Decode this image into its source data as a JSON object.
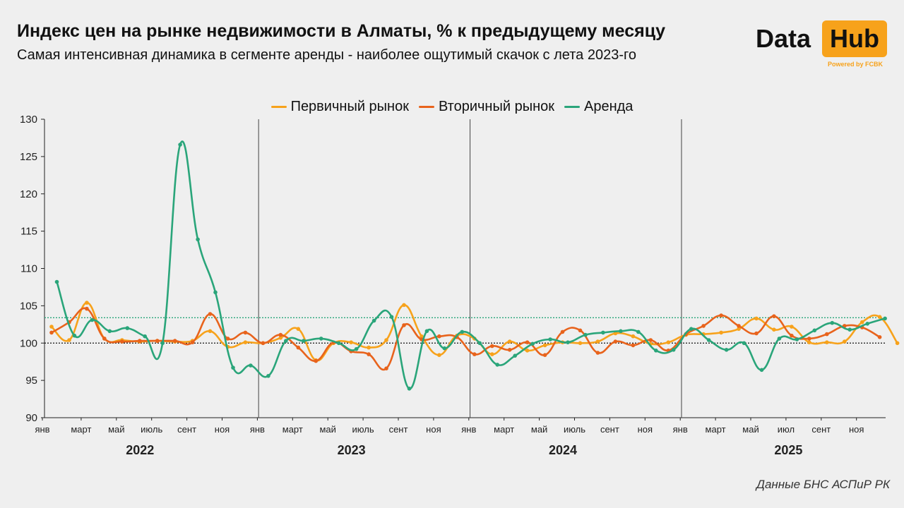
{
  "header": {
    "title": "Индекс цен на рынке недвижимости в Алматы, % к предыдущему месяцу",
    "subtitle": "Самая интенсивная динамика в сегменте аренды - наиболее ощутимый скачок с лета 2023-го"
  },
  "logo": {
    "word1": "Data",
    "word2": "Hub",
    "tagline": "Powered by FCBK",
    "accent": "#f7a21b"
  },
  "source": "Данные БНС АСПиР РК",
  "chart_data": {
    "type": "line",
    "y_ticks": [
      "130",
      "125",
      "120",
      "115",
      "110",
      "105",
      "100",
      "95",
      "90"
    ],
    "ylim": [
      90,
      130
    ],
    "month_labels": [
      {
        "index": 0,
        "label": "янв"
      },
      {
        "index": 2,
        "label": "март"
      },
      {
        "index": 4,
        "label": "май"
      },
      {
        "index": 6,
        "label": "июль"
      },
      {
        "index": 8,
        "label": "сент"
      },
      {
        "index": 10,
        "label": "ноя"
      },
      {
        "index": 12,
        "label": "янв"
      },
      {
        "index": 14,
        "label": "март"
      },
      {
        "index": 16,
        "label": "май"
      },
      {
        "index": 18,
        "label": "июль"
      },
      {
        "index": 20,
        "label": "сент"
      },
      {
        "index": 22,
        "label": "ноя"
      },
      {
        "index": 24,
        "label": "янв"
      },
      {
        "index": 26,
        "label": "март"
      },
      {
        "index": 28,
        "label": "май"
      },
      {
        "index": 30,
        "label": "июль"
      },
      {
        "index": 32,
        "label": "сент"
      },
      {
        "index": 34,
        "label": "ноя"
      },
      {
        "index": 36,
        "label": "янв"
      },
      {
        "index": 38,
        "label": "март"
      },
      {
        "index": 40,
        "label": "май"
      },
      {
        "index": 42,
        "label": "июл"
      },
      {
        "index": 44,
        "label": "сент"
      },
      {
        "index": 46,
        "label": "ноя"
      }
    ],
    "years": [
      {
        "label": "2022",
        "center_index": 5.5
      },
      {
        "label": "2023",
        "center_index": 17.5
      },
      {
        "label": "2024",
        "center_index": 29.5
      },
      {
        "label": "2025",
        "center_index": 42.3
      }
    ],
    "year_dividers": [
      12,
      24,
      36
    ],
    "reference_lines": [
      {
        "value": 100,
        "style": "dotted",
        "color": "#111111"
      },
      {
        "value": 103.4,
        "style": "dotted",
        "color": "#2aa57a"
      }
    ],
    "series": [
      {
        "name": "Первичный рынок",
        "color": "#f7a21b",
        "values": [
          102.2,
          100.4,
          105.4,
          100.6,
          100.4,
          100.2,
          100.3,
          100.2,
          100.3,
          101.6,
          99.5,
          100.1,
          100.0,
          100.7,
          101.9,
          97.7,
          100.0,
          100.1,
          99.4,
          100.4,
          105.1,
          100.9,
          98.4,
          101.0,
          100.6,
          98.5,
          100.2,
          99.0,
          99.7,
          100.1,
          100.0,
          100.2,
          101.3,
          100.9,
          99.9,
          100.1,
          101.1,
          101.2,
          101.4,
          101.9,
          103.3,
          101.8,
          102.2,
          100.1,
          100.1,
          100.2,
          102.8,
          103.5,
          100.0
        ],
        "x_start": 0
      },
      {
        "name": "Вторичный рынок",
        "color": "#e8631c",
        "values": [
          101.4,
          102.8,
          104.6,
          100.6,
          100.2,
          100.3,
          100.3,
          100.3,
          100.1,
          103.9,
          100.6,
          101.4,
          100.0,
          101.1,
          99.4,
          97.6,
          100.1,
          98.9,
          98.5,
          96.6,
          102.4,
          100.5,
          100.9,
          100.8,
          98.5,
          99.6,
          99.1,
          100.1,
          98.4,
          101.5,
          101.7,
          98.7,
          100.2,
          99.7,
          100.4,
          99.0,
          101.2,
          102.3,
          103.7,
          102.3,
          101.3,
          103.6,
          101.0,
          100.6,
          101.2,
          102.3,
          102.1,
          100.8
        ],
        "x_start": 0
      },
      {
        "name": "Аренда",
        "color": "#2aa57a",
        "values": [
          108.2,
          101.0,
          103.1,
          101.6,
          102.0,
          100.9,
          100.0,
          126.6,
          113.9,
          106.8,
          96.7,
          97.0,
          95.6,
          100.3,
          100.3,
          100.6,
          100.0,
          99.2,
          103.0,
          103.5,
          93.9,
          101.6,
          99.3,
          101.5,
          100.0,
          97.1,
          98.3,
          99.9,
          100.5,
          100.1,
          101.1,
          101.4,
          101.6,
          101.5,
          99.0,
          99.1,
          101.9,
          100.4,
          99.1,
          100.0,
          96.4,
          100.6,
          100.5,
          101.7,
          102.7,
          101.8,
          102.6,
          103.3
        ],
        "x_start": 0.3
      }
    ]
  }
}
